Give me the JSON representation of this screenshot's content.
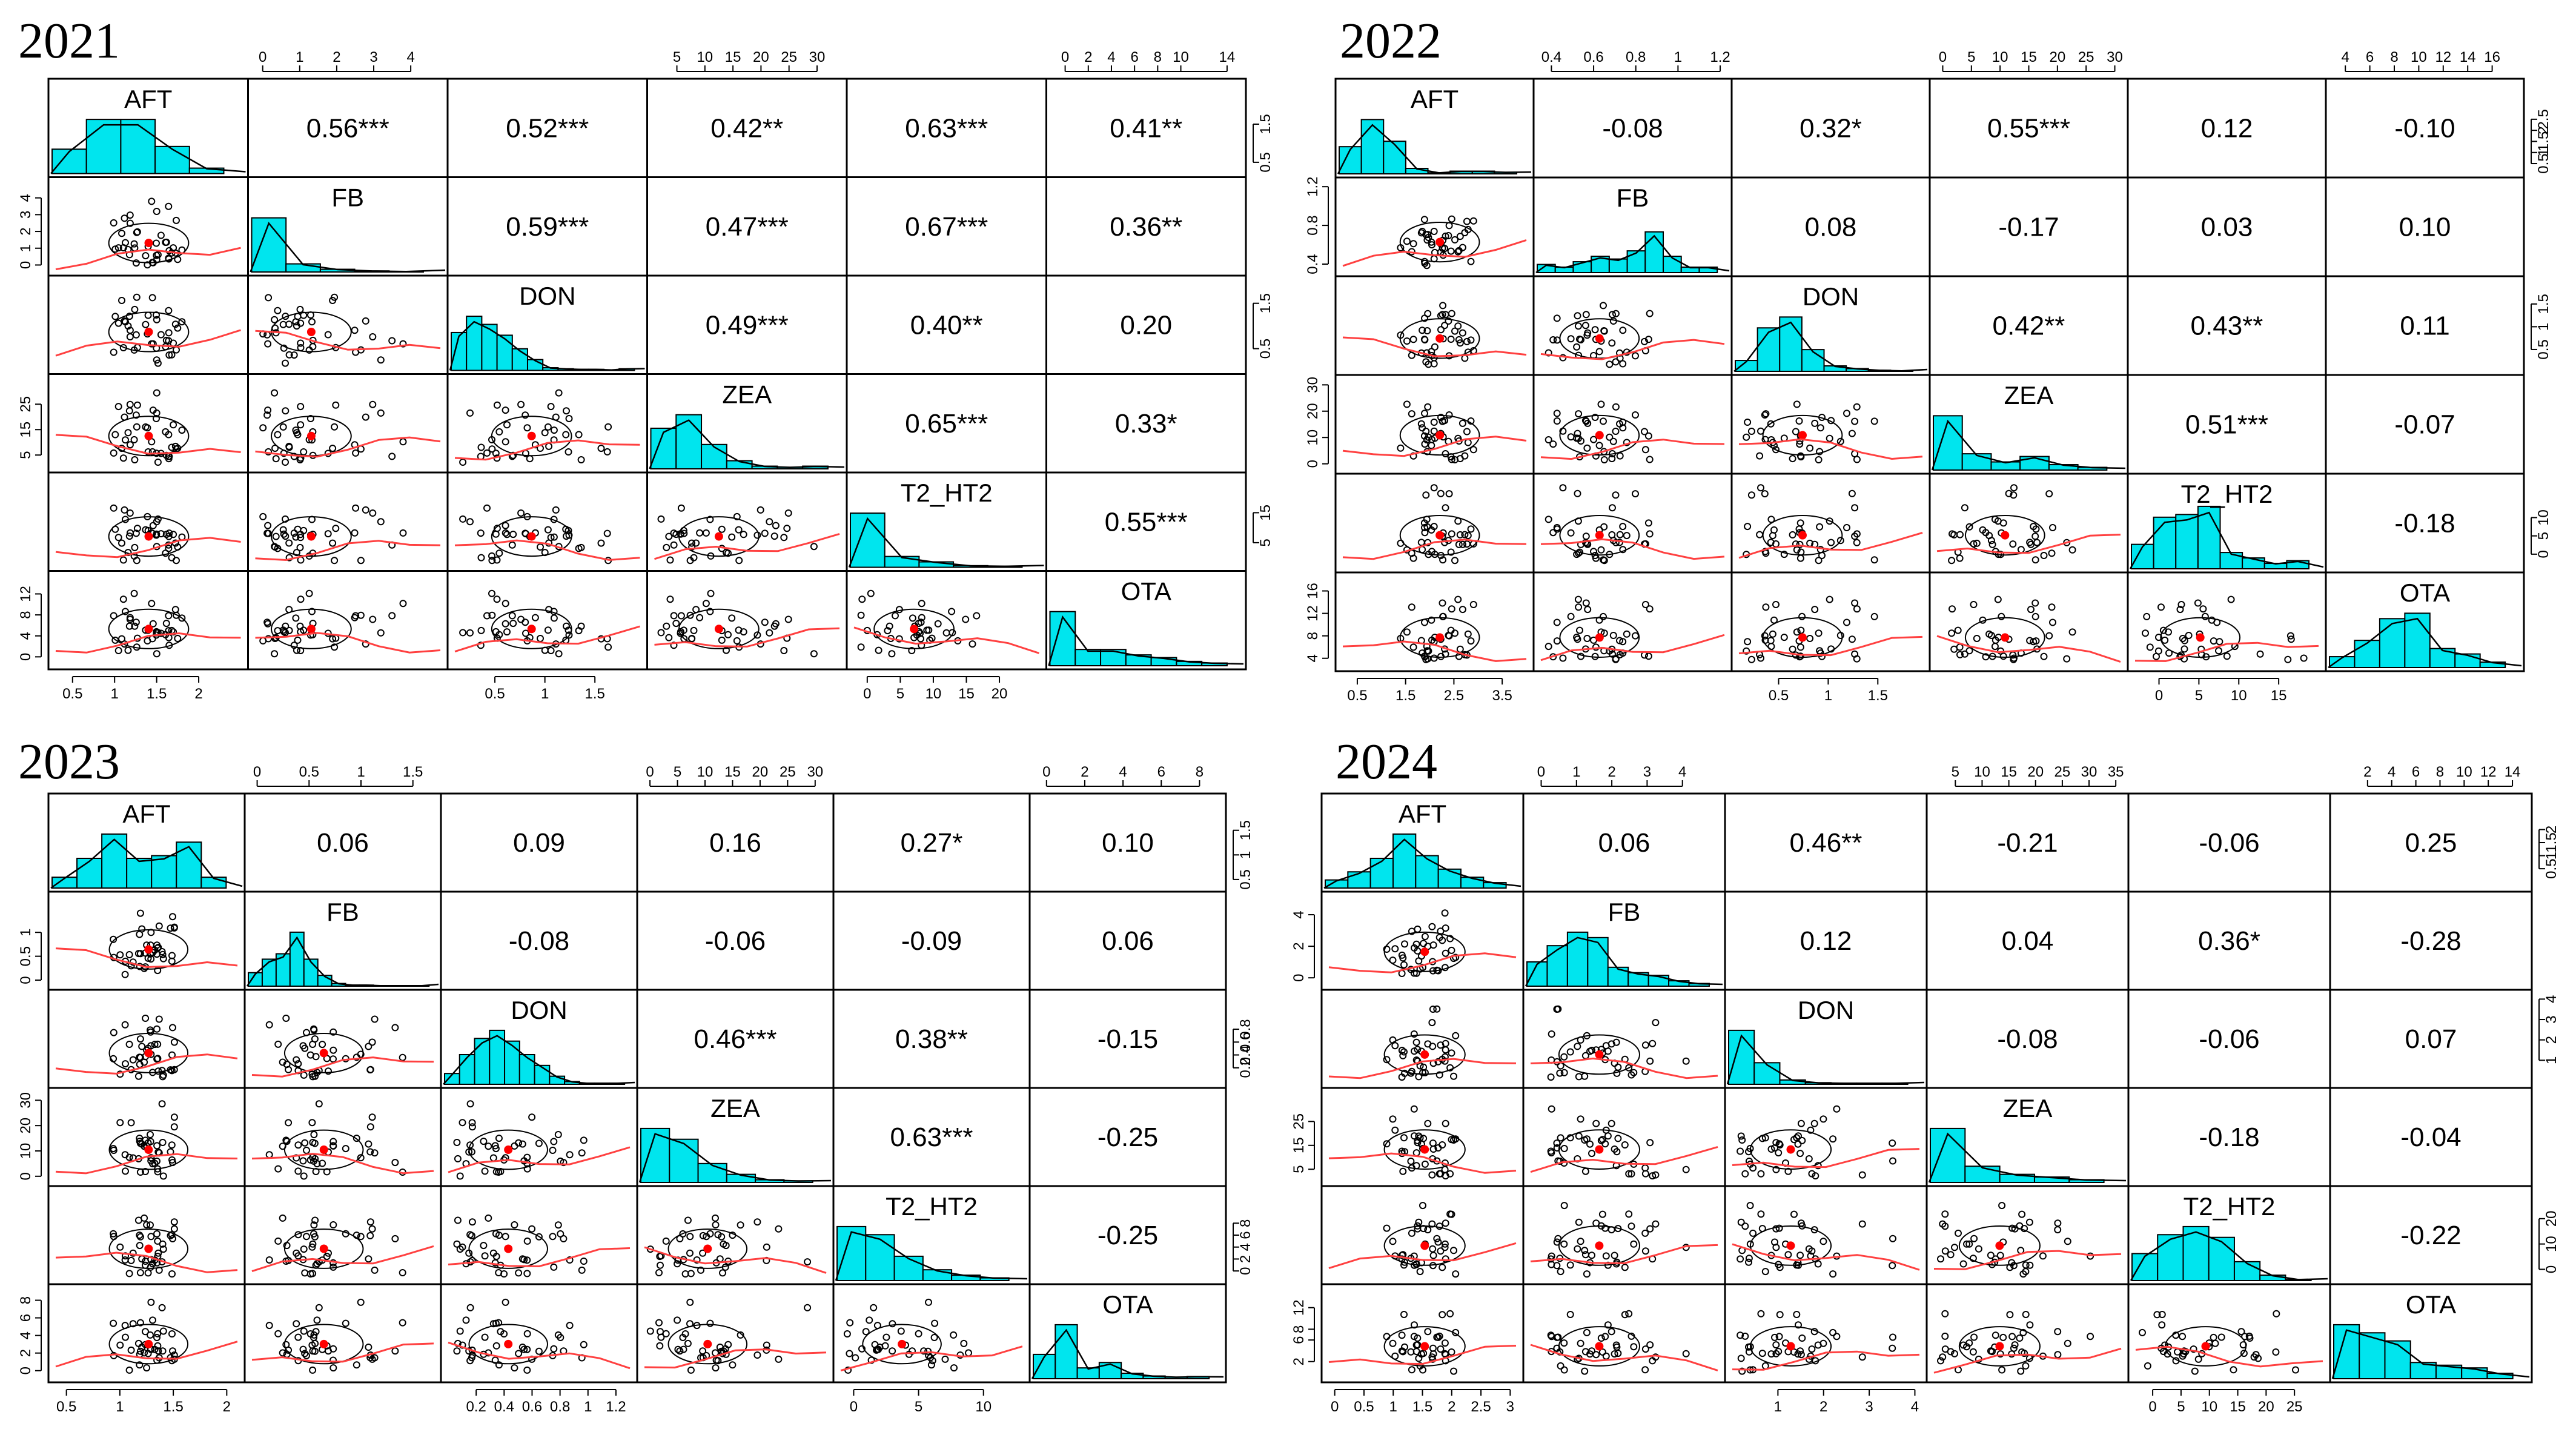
{
  "chart_data": [
    {
      "type": "scatter",
      "title": "2021",
      "variables": [
        "AFT",
        "FB",
        "DON",
        "ZEA",
        "T2_HT2",
        "OTA"
      ],
      "correlations": [
        [
          "",
          "0.56***",
          "0.52***",
          "0.42**",
          "0.63***",
          "0.41**"
        ],
        [
          "",
          "",
          "0.59***",
          "0.47***",
          "0.67***",
          "0.36**"
        ],
        [
          "",
          "",
          "",
          "0.49***",
          "0.40**",
          "0.20"
        ],
        [
          "",
          "",
          "",
          "",
          "0.65***",
          "0.33*"
        ],
        [
          "",
          "",
          "",
          "",
          "",
          "0.55***"
        ],
        [
          "",
          "",
          "",
          "",
          "",
          ""
        ]
      ],
      "ranges": [
        [
          0.3,
          2.5
        ],
        [
          -0.2,
          4.8
        ],
        [
          0.1,
          1.95
        ],
        [
          1,
          34
        ],
        [
          -2,
          26
        ],
        [
          -1,
          15
        ]
      ],
      "top_ticks": [
        null,
        [
          0,
          1,
          2,
          3,
          4
        ],
        null,
        [
          5,
          10,
          15,
          20,
          25,
          30
        ],
        null,
        [
          0,
          2,
          4,
          6,
          8,
          10,
          14
        ]
      ],
      "bottom_ticks": [
        [
          0.5,
          1.0,
          1.5,
          2.0
        ],
        null,
        [
          0.5,
          1.0,
          1.5
        ],
        null,
        [
          0,
          5,
          10,
          15,
          20
        ],
        null
      ],
      "left_ticks": [
        null,
        [
          0,
          1,
          2,
          3,
          4
        ],
        null,
        [
          5,
          15,
          25
        ],
        null,
        [
          0,
          4,
          8,
          12
        ]
      ],
      "right_ticks": [
        [
          0.5,
          1.5
        ],
        null,
        [
          0.5,
          1.5
        ],
        null,
        [
          5,
          15
        ],
        null
      ],
      "histograms": [
        [
          0.45,
          1.0,
          1.0,
          0.5,
          0.1
        ],
        [
          1.0,
          0.15,
          0.05,
          0.02,
          0.01
        ],
        [
          0.7,
          1.0,
          0.85,
          0.65,
          0.4,
          0.2,
          0.05,
          0.03,
          0.02,
          0.02,
          0.01,
          0.03
        ],
        [
          0.75,
          1.0,
          0.45,
          0.15,
          0.05,
          0.03,
          0.05
        ],
        [
          1.0,
          0.2,
          0.1,
          0.03,
          0.02
        ],
        [
          1.0,
          0.3,
          0.3,
          0.2,
          0.15,
          0.08,
          0.05
        ]
      ]
    },
    {
      "type": "scatter",
      "title": "2022",
      "variables": [
        "AFT",
        "FB",
        "DON",
        "ZEA",
        "T2_HT2",
        "OTA"
      ],
      "correlations": [
        [
          "",
          "-0.08",
          "0.32*",
          "0.55***",
          "0.12",
          "-0.10"
        ],
        [
          "",
          "",
          "0.08",
          "-0.17",
          "0.03",
          "0.10"
        ],
        [
          "",
          "",
          "",
          "0.42**",
          "0.43**",
          "0.11"
        ],
        [
          "",
          "",
          "",
          "",
          "0.51***",
          "-0.07"
        ],
        [
          "",
          "",
          "",
          "",
          "",
          "-0.18"
        ],
        [
          "",
          "",
          "",
          "",
          "",
          ""
        ]
      ],
      "ranges": [
        [
          0.2,
          4.0
        ],
        [
          0.35,
          1.22
        ],
        [
          0.1,
          1.95
        ],
        [
          -1,
          31
        ],
        [
          -3,
          20
        ],
        [
          3,
          18
        ]
      ],
      "top_ticks": [
        null,
        [
          0.4,
          0.6,
          0.8,
          1.0,
          1.2
        ],
        null,
        [
          0,
          5,
          10,
          15,
          20,
          25,
          30
        ],
        null,
        [
          4,
          6,
          8,
          10,
          12,
          14,
          16
        ]
      ],
      "bottom_ticks": [
        [
          0.5,
          1.5,
          2.5,
          3.5
        ],
        null,
        [
          0.5,
          1.0,
          1.5
        ],
        null,
        [
          0,
          5,
          10,
          15
        ],
        null
      ],
      "left_ticks": [
        null,
        [
          0.4,
          0.8,
          1.2
        ],
        null,
        [
          0,
          10,
          20,
          30
        ],
        null,
        [
          4,
          8,
          12,
          16
        ]
      ],
      "right_ticks": [
        [
          0.5,
          1.0,
          1.5,
          2.0,
          2.5
        ],
        null,
        [
          0.5,
          1.0,
          1.5
        ],
        null,
        [
          0,
          5,
          10
        ],
        null
      ],
      "histograms": [
        [
          0.5,
          1.0,
          0.6,
          0.1,
          0.02,
          0.05,
          0.05,
          0.03
        ],
        [
          0.15,
          0.1,
          0.2,
          0.3,
          0.25,
          0.4,
          0.75,
          0.3,
          0.1,
          0.1
        ],
        [
          0.2,
          0.8,
          1.0,
          0.4,
          0.1,
          0.05,
          0.02,
          0.01
        ],
        [
          1.0,
          0.3,
          0.15,
          0.25,
          0.1,
          0.05
        ],
        [
          0.45,
          0.95,
          1.0,
          1.15,
          0.3,
          0.2,
          0.1,
          0.15
        ],
        [
          0.2,
          0.5,
          0.9,
          1.0,
          0.35,
          0.25,
          0.1
        ]
      ]
    },
    {
      "type": "scatter",
      "title": "2023",
      "variables": [
        "AFT",
        "FB",
        "DON",
        "ZEA",
        "T2_HT2",
        "OTA"
      ],
      "correlations": [
        [
          "",
          "0.06",
          "0.09",
          "0.16",
          "0.27*",
          "0.10"
        ],
        [
          "",
          "",
          "-0.08",
          "-0.06",
          "-0.09",
          "0.06"
        ],
        [
          "",
          "",
          "",
          "0.46***",
          "0.38**",
          "-0.15"
        ],
        [
          "",
          "",
          "",
          "",
          "0.63***",
          "-0.25"
        ],
        [
          "",
          "",
          "",
          "",
          "",
          "-0.25"
        ],
        [
          "",
          "",
          "",
          "",
          "",
          ""
        ]
      ],
      "ranges": [
        [
          0.4,
          2.1
        ],
        [
          -0.05,
          1.7
        ],
        [
          0.0,
          1.3
        ],
        [
          -1,
          32
        ],
        [
          -1,
          13
        ],
        [
          -0.5,
          9
        ]
      ],
      "top_ticks": [
        null,
        [
          0.0,
          0.5,
          1.0,
          1.5
        ],
        null,
        [
          0,
          5,
          10,
          15,
          20,
          25,
          30
        ],
        null,
        [
          0,
          2,
          4,
          6,
          8
        ]
      ],
      "bottom_ticks": [
        [
          0.5,
          1.0,
          1.5,
          2.0
        ],
        null,
        [
          0.2,
          0.4,
          0.6,
          0.8,
          1.0,
          1.2
        ],
        null,
        [
          0,
          5,
          10
        ],
        null
      ],
      "left_ticks": [
        null,
        [
          0.0,
          0.5,
          1.0
        ],
        null,
        [
          0,
          10,
          20,
          30
        ],
        null,
        [
          0,
          2,
          4,
          6,
          8
        ]
      ],
      "right_ticks": [
        [
          0.5,
          1.0,
          1.5
        ],
        null,
        [
          0.2,
          0.4,
          0.6,
          0.8
        ],
        null,
        [
          0,
          2,
          4,
          6,
          8
        ],
        null
      ],
      "histograms": [
        [
          0.2,
          0.55,
          1.0,
          0.55,
          0.6,
          0.85,
          0.2
        ],
        [
          0.25,
          0.5,
          0.6,
          1.0,
          0.5,
          0.2,
          0.05,
          0.02,
          0.02,
          0.01,
          0.01,
          0.01,
          0.01
        ],
        [
          0.2,
          0.55,
          0.85,
          1.0,
          0.8,
          0.55,
          0.35,
          0.15,
          0.05,
          0.02,
          0.02,
          0.02
        ],
        [
          1.0,
          0.8,
          0.35,
          0.15,
          0.05,
          0.03
        ],
        [
          1.0,
          0.85,
          0.45,
          0.2,
          0.1,
          0.05
        ],
        [
          0.45,
          1.0,
          0.2,
          0.3,
          0.1,
          0.05,
          0.03,
          0.04
        ]
      ]
    },
    {
      "type": "scatter",
      "title": "2024",
      "variables": [
        "AFT",
        "FB",
        "DON",
        "ZEA",
        "T2_HT2",
        "OTA"
      ],
      "correlations": [
        [
          "",
          "0.06",
          "0.46**",
          "-0.21",
          "-0.06",
          "0.25"
        ],
        [
          "",
          "",
          "0.12",
          "0.04",
          "0.36*",
          "-0.28"
        ],
        [
          "",
          "",
          "",
          "-0.08",
          "-0.06",
          "0.07"
        ],
        [
          "",
          "",
          "",
          "",
          "-0.18",
          "-0.04"
        ],
        [
          "",
          "",
          "",
          "",
          "",
          "-0.22"
        ],
        [
          "",
          "",
          "",
          "",
          "",
          ""
        ]
      ],
      "ranges": [
        [
          -0.1,
          3.1
        ],
        [
          -0.3,
          5.0
        ],
        [
          0.0,
          4.1
        ],
        [
          1,
          36
        ],
        [
          -3,
          30
        ],
        [
          -0.5,
          15
        ]
      ],
      "top_ticks": [
        null,
        [
          0,
          1,
          2,
          3,
          4
        ],
        null,
        [
          5,
          10,
          15,
          20,
          25,
          30,
          35
        ],
        null,
        [
          2,
          4,
          6,
          8,
          10,
          12,
          14
        ]
      ],
      "bottom_ticks": [
        [
          0.0,
          0.5,
          1.0,
          1.5,
          2.0,
          2.5,
          3.0
        ],
        null,
        [
          1,
          2,
          3,
          4
        ],
        null,
        [
          0,
          5,
          10,
          15,
          20,
          25
        ],
        null
      ],
      "left_ticks": [
        null,
        [
          0,
          2,
          4
        ],
        null,
        [
          5,
          15,
          25
        ],
        null,
        [
          2,
          6,
          8,
          12
        ]
      ],
      "right_ticks": [
        [
          0.5,
          1.0,
          1.5,
          2.0
        ],
        null,
        [
          1,
          2,
          3,
          4
        ],
        null,
        [
          0,
          10,
          20
        ],
        null
      ],
      "histograms": [
        [
          0.15,
          0.3,
          0.55,
          1.0,
          0.6,
          0.35,
          0.2,
          0.1
        ],
        [
          0.45,
          0.75,
          1.0,
          0.9,
          0.35,
          0.25,
          0.2,
          0.1,
          0.05
        ],
        [
          1.0,
          0.4,
          0.08,
          0.03,
          0.02,
          0.02,
          0.02
        ],
        [
          1.0,
          0.3,
          0.15,
          0.1,
          0.05
        ],
        [
          0.5,
          0.85,
          1.0,
          0.8,
          0.35,
          0.1,
          0.02
        ],
        [
          1.0,
          0.85,
          0.7,
          0.3,
          0.25,
          0.2,
          0.1
        ]
      ]
    }
  ]
}
